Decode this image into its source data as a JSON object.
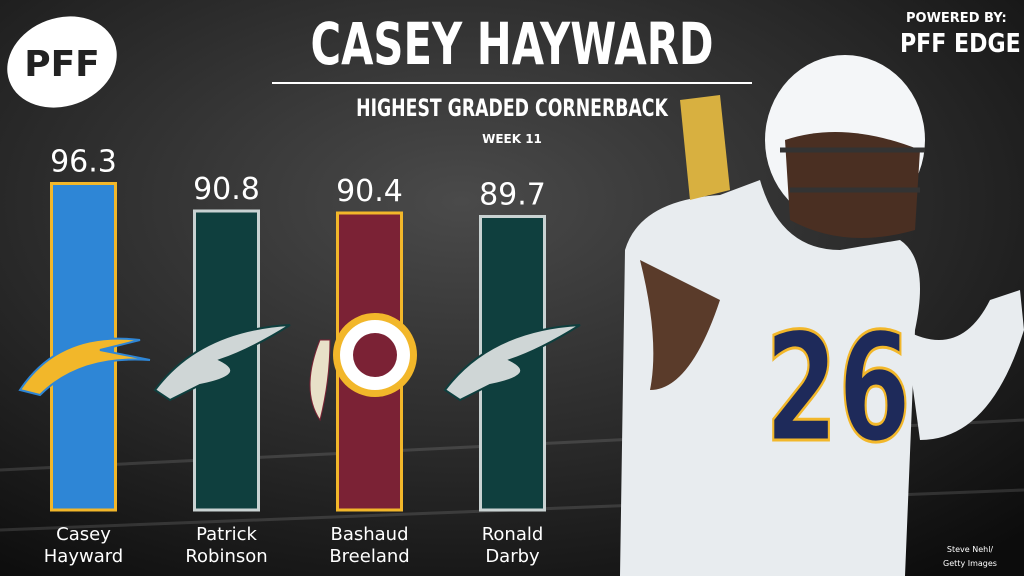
{
  "chart_data": {
    "type": "bar",
    "title": "CASEY HAYWARD",
    "subtitle": "HIGHEST GRADED CORNERBACK",
    "period": "WEEK 11",
    "brand": "PFF",
    "powered_by": "POWERED BY:",
    "powered_brand": "PFF EDGE",
    "photo_credit": [
      "Steve Nehl/",
      "Getty Images"
    ],
    "categories": [
      "Casey Hayward",
      "Patrick Robinson",
      "Bashaud Breeland",
      "Ronald Darby"
    ],
    "values": [
      96.3,
      90.8,
      90.4,
      89.7
    ],
    "colors": [
      "#2e86d6",
      "#0f3f3e",
      "#7b2235",
      "#0f3f3e"
    ],
    "edge_colors": [
      "#f2b72a",
      "#c9d2d2",
      "#f2b72a",
      "#c9d2d2"
    ],
    "ylim": [
      31,
      100
    ]
  }
}
